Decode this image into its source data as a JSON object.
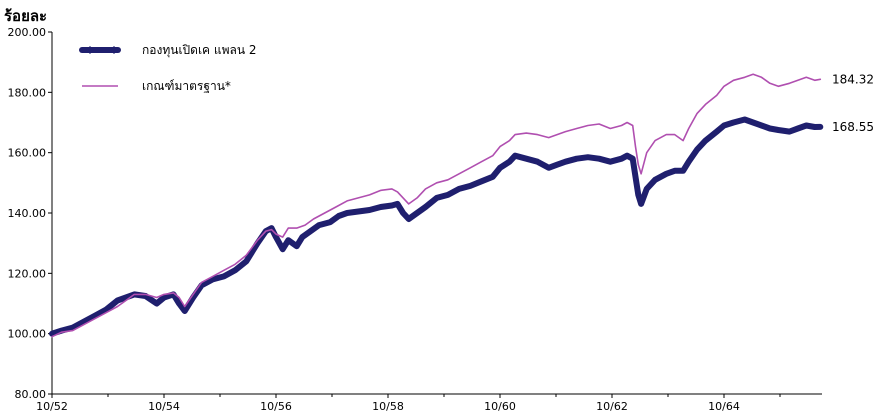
{
  "chart_data": {
    "type": "line",
    "ylabel": "ร้อยละ",
    "ylim": [
      80,
      200
    ],
    "y_ticks": [
      "80.00",
      "100.00",
      "120.00",
      "140.00",
      "160.00",
      "180.00",
      "200.00"
    ],
    "x_ticks": [
      "10/52",
      "10/54",
      "10/56",
      "10/58",
      "10/60",
      "10/62",
      "10/64"
    ],
    "grid": false,
    "legend_position": "top-left",
    "series": [
      {
        "name": "กองทุนเปิดเค แพลน 2",
        "color": "#1f1f6e",
        "end_label": "168.55",
        "points": [
          [
            2552.83,
            100
          ],
          [
            2553.0,
            101
          ],
          [
            2553.2,
            102
          ],
          [
            2553.4,
            104
          ],
          [
            2553.6,
            106
          ],
          [
            2553.8,
            108
          ],
          [
            2554.0,
            111
          ],
          [
            2554.15,
            112
          ],
          [
            2554.3,
            113
          ],
          [
            2554.5,
            112.5
          ],
          [
            2554.7,
            110
          ],
          [
            2554.83,
            112
          ],
          [
            2555.0,
            113
          ],
          [
            2555.1,
            110
          ],
          [
            2555.2,
            107.5
          ],
          [
            2555.35,
            112
          ],
          [
            2555.5,
            116
          ],
          [
            2555.7,
            118
          ],
          [
            2555.9,
            119
          ],
          [
            2556.1,
            121
          ],
          [
            2556.3,
            124
          ],
          [
            2556.5,
            130
          ],
          [
            2556.65,
            134
          ],
          [
            2556.75,
            135
          ],
          [
            2556.83,
            132
          ],
          [
            2556.95,
            128
          ],
          [
            2557.05,
            131
          ],
          [
            2557.2,
            129
          ],
          [
            2557.3,
            132
          ],
          [
            2557.45,
            134
          ],
          [
            2557.6,
            136
          ],
          [
            2557.8,
            137
          ],
          [
            2557.95,
            139
          ],
          [
            2558.1,
            140
          ],
          [
            2558.3,
            140.5
          ],
          [
            2558.5,
            141
          ],
          [
            2558.7,
            142
          ],
          [
            2558.9,
            142.5
          ],
          [
            2559.0,
            143
          ],
          [
            2559.1,
            140
          ],
          [
            2559.2,
            138
          ],
          [
            2559.35,
            140
          ],
          [
            2559.5,
            142
          ],
          [
            2559.7,
            145
          ],
          [
            2559.9,
            146
          ],
          [
            2560.1,
            148
          ],
          [
            2560.3,
            149
          ],
          [
            2560.5,
            150.5
          ],
          [
            2560.7,
            152
          ],
          [
            2560.83,
            155
          ],
          [
            2561.0,
            157
          ],
          [
            2561.1,
            159
          ],
          [
            2561.3,
            158
          ],
          [
            2561.5,
            157
          ],
          [
            2561.7,
            155
          ],
          [
            2561.85,
            156
          ],
          [
            2562.0,
            157
          ],
          [
            2562.2,
            158
          ],
          [
            2562.4,
            158.5
          ],
          [
            2562.6,
            158
          ],
          [
            2562.8,
            157
          ],
          [
            2563.0,
            158
          ],
          [
            2563.1,
            159
          ],
          [
            2563.2,
            158
          ],
          [
            2563.25,
            152
          ],
          [
            2563.3,
            146
          ],
          [
            2563.35,
            143
          ],
          [
            2563.45,
            148
          ],
          [
            2563.6,
            151
          ],
          [
            2563.8,
            153
          ],
          [
            2563.95,
            154
          ],
          [
            2564.1,
            154
          ],
          [
            2564.2,
            157
          ],
          [
            2564.35,
            161
          ],
          [
            2564.5,
            164
          ],
          [
            2564.7,
            167
          ],
          [
            2564.83,
            169
          ],
          [
            2565.0,
            170
          ],
          [
            2565.2,
            171
          ],
          [
            2565.35,
            170
          ],
          [
            2565.5,
            169
          ],
          [
            2565.65,
            168
          ],
          [
            2565.8,
            167.5
          ],
          [
            2566.0,
            167
          ],
          [
            2566.15,
            168
          ],
          [
            2566.3,
            169
          ],
          [
            2566.45,
            168.5
          ],
          [
            2566.55,
            168.55
          ]
        ]
      },
      {
        "name": "เกณฑ์มาตรฐาน*",
        "color": "#b04fb0",
        "end_label": "184.32",
        "points": [
          [
            2552.83,
            99
          ],
          [
            2553.0,
            100.5
          ],
          [
            2553.2,
            101
          ],
          [
            2553.4,
            103
          ],
          [
            2553.6,
            105
          ],
          [
            2553.8,
            107
          ],
          [
            2554.0,
            109
          ],
          [
            2554.15,
            111
          ],
          [
            2554.3,
            113
          ],
          [
            2554.5,
            113
          ],
          [
            2554.7,
            112
          ],
          [
            2554.83,
            113
          ],
          [
            2555.0,
            113.5
          ],
          [
            2555.1,
            112
          ],
          [
            2555.2,
            109
          ],
          [
            2555.35,
            113
          ],
          [
            2555.5,
            117
          ],
          [
            2555.7,
            119
          ],
          [
            2555.9,
            121
          ],
          [
            2556.1,
            123
          ],
          [
            2556.3,
            126
          ],
          [
            2556.5,
            131
          ],
          [
            2556.65,
            134
          ],
          [
            2556.75,
            134.5
          ],
          [
            2556.83,
            133
          ],
          [
            2556.95,
            132
          ],
          [
            2557.05,
            135
          ],
          [
            2557.2,
            135
          ],
          [
            2557.35,
            136
          ],
          [
            2557.5,
            138
          ],
          [
            2557.7,
            140
          ],
          [
            2557.9,
            142
          ],
          [
            2558.1,
            144
          ],
          [
            2558.3,
            145
          ],
          [
            2558.5,
            146
          ],
          [
            2558.7,
            147.5
          ],
          [
            2558.9,
            148
          ],
          [
            2559.0,
            147
          ],
          [
            2559.1,
            145
          ],
          [
            2559.2,
            143
          ],
          [
            2559.35,
            145
          ],
          [
            2559.5,
            148
          ],
          [
            2559.7,
            150
          ],
          [
            2559.9,
            151
          ],
          [
            2560.1,
            153
          ],
          [
            2560.3,
            155
          ],
          [
            2560.5,
            157
          ],
          [
            2560.7,
            159
          ],
          [
            2560.83,
            162
          ],
          [
            2561.0,
            164
          ],
          [
            2561.1,
            166
          ],
          [
            2561.3,
            166.5
          ],
          [
            2561.5,
            166
          ],
          [
            2561.7,
            165
          ],
          [
            2561.85,
            166
          ],
          [
            2562.0,
            167
          ],
          [
            2562.2,
            168
          ],
          [
            2562.4,
            169
          ],
          [
            2562.6,
            169.5
          ],
          [
            2562.8,
            168
          ],
          [
            2563.0,
            169
          ],
          [
            2563.1,
            170
          ],
          [
            2563.2,
            169
          ],
          [
            2563.25,
            162
          ],
          [
            2563.3,
            156
          ],
          [
            2563.35,
            153
          ],
          [
            2563.45,
            160
          ],
          [
            2563.6,
            164
          ],
          [
            2563.8,
            166
          ],
          [
            2563.95,
            166
          ],
          [
            2564.1,
            164
          ],
          [
            2564.2,
            168
          ],
          [
            2564.35,
            173
          ],
          [
            2564.5,
            176
          ],
          [
            2564.7,
            179
          ],
          [
            2564.83,
            182
          ],
          [
            2565.0,
            184
          ],
          [
            2565.2,
            185
          ],
          [
            2565.35,
            186
          ],
          [
            2565.5,
            185
          ],
          [
            2565.65,
            183
          ],
          [
            2565.8,
            182
          ],
          [
            2566.0,
            183
          ],
          [
            2566.15,
            184
          ],
          [
            2566.3,
            185
          ],
          [
            2566.45,
            184
          ],
          [
            2566.55,
            184.32
          ]
        ]
      }
    ]
  }
}
